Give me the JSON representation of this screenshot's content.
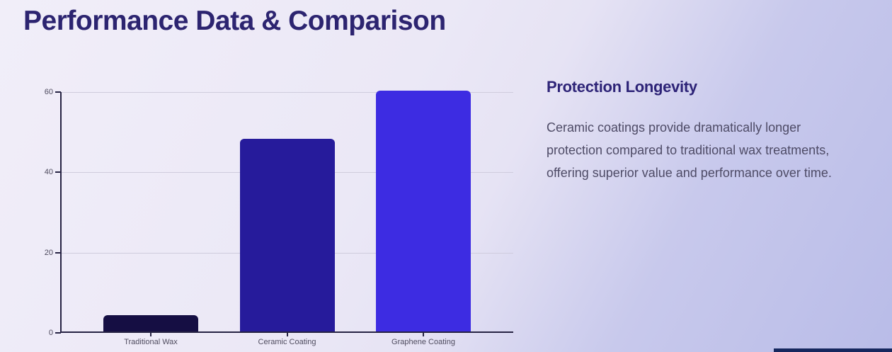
{
  "page": {
    "title": "Performance Data & Comparison"
  },
  "chart_data": {
    "type": "bar",
    "categories": [
      "Traditional Wax",
      "Ceramic Coating",
      "Graphene Coating"
    ],
    "values": [
      4,
      48,
      60
    ],
    "title": "",
    "xlabel": "",
    "ylabel": "",
    "ylim": [
      0,
      60
    ],
    "yticks": [
      0,
      20,
      40,
      60
    ],
    "grid": true,
    "legend": "none",
    "bar_colors": [
      "#150e43",
      "#261b9b",
      "#3d2ce2"
    ],
    "axis_color": "#262343",
    "gridline_color": "#cfccdd",
    "tick_label_color": "#4f4c5f"
  },
  "info": {
    "heading": "Protection Longevity",
    "body": "Ceramic coatings provide dramatically longer protection compared to traditional wax treatments, offering superior value and performance over time."
  },
  "colors": {
    "title_text": "#2c2470",
    "heading_text": "#2d2377",
    "body_text": "#4e4b66",
    "background_light": "#f1eef9",
    "background_periwinkle": "#b9bce8",
    "bottom_partial_element": "#16275e"
  }
}
